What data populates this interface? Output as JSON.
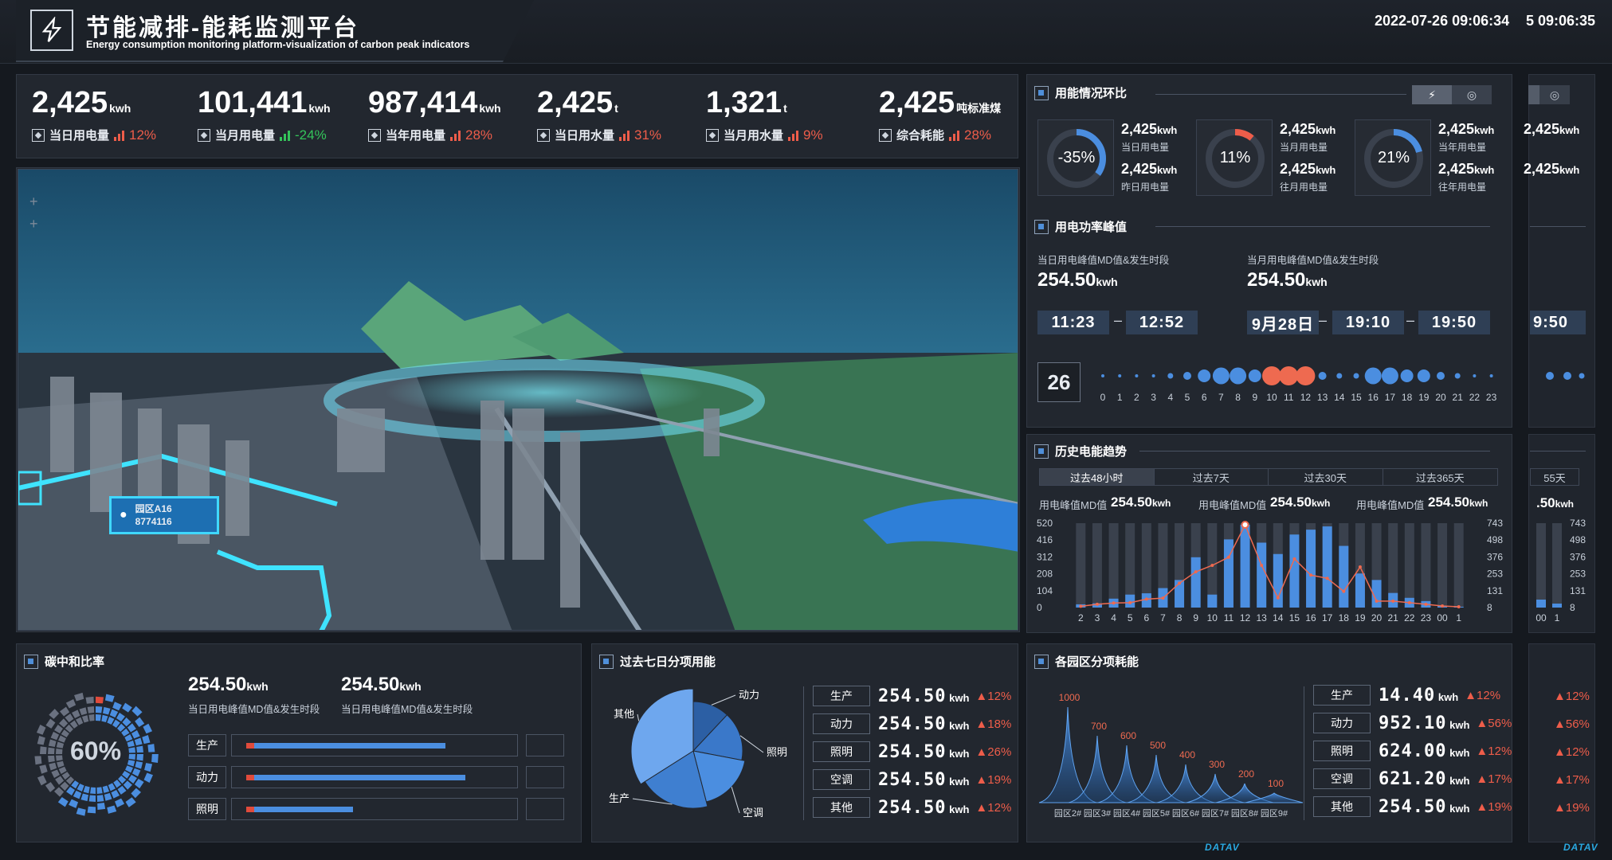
{
  "header": {
    "title": "节能减排-能耗监测平台",
    "subtitle": "Energy consumption monitoring platform-visualization of carbon peak indicators",
    "datetime": "2022-07-26 09:06:34",
    "datetime_ghost": "5 09:06:35"
  },
  "kpis": [
    {
      "value": "2,425",
      "unit": "kwh",
      "label": "当日用电量",
      "change": "12%",
      "trend": "up"
    },
    {
      "value": "101,441",
      "unit": "kwh",
      "label": "当月用电量",
      "change": "-24%",
      "trend": "down"
    },
    {
      "value": "987,414",
      "unit": "kwh",
      "label": "当年用电量",
      "change": "28%",
      "trend": "up"
    },
    {
      "value": "2,425",
      "unit": "t",
      "label": "当日用水量",
      "change": "31%",
      "trend": "up"
    },
    {
      "value": "1,321",
      "unit": "t",
      "label": "当月用水量",
      "change": "9%",
      "trend": "up"
    },
    {
      "value": "2,425",
      "unit": "吨标准煤",
      "label": "综合耗能",
      "change": "28%",
      "trend": "up"
    }
  ],
  "map": {
    "label_title": "园区A16",
    "label_value": "8774116",
    "controls": [
      "+",
      "+"
    ]
  },
  "usage_ratio": {
    "title": "用能情况环比",
    "toggles": [
      "lightning-icon",
      "drop-icon"
    ],
    "gauges": [
      {
        "pct": "-35%",
        "v1": "2,425",
        "u1": "kwh",
        "l1": "当日用电量",
        "v2": "2,425",
        "u2": "kwh",
        "l2": "昨日用电量",
        "fill": 0.35
      },
      {
        "pct": "11%",
        "v1": "2,425",
        "u1": "kwh",
        "l1": "当月用电量",
        "v2": "2,425",
        "u2": "kwh",
        "l2": "往月用电量",
        "fill": 0.11
      },
      {
        "pct": "21%",
        "v1": "2,425",
        "u1": "kwh",
        "l1": "当年用电量",
        "v2": "2,425",
        "u2": "kwh",
        "l2": "往年用电量",
        "fill": 0.21
      }
    ]
  },
  "peak": {
    "title": "用电功率峰值",
    "day_label": "当日用电峰值MD值&发生时段",
    "day_value": "254.50",
    "day_unit": "kwh",
    "day_from": "11:23",
    "day_to": "12:52",
    "month_label": "当月用电峰值MD值&发生时段",
    "month_value": "254.50",
    "month_unit": "kwh",
    "month_date": "9月28日",
    "month_from": "19:10",
    "month_to": "19:50",
    "ghost_time": "9:50",
    "day_badge": "26",
    "hours": [
      "0",
      "1",
      "2",
      "3",
      "4",
      "5",
      "6",
      "7",
      "8",
      "9",
      "10",
      "11",
      "12",
      "13",
      "14",
      "15",
      "16",
      "17",
      "18",
      "19",
      "20",
      "21",
      "22",
      "23"
    ],
    "hour_levels": [
      1,
      1,
      1,
      1,
      2,
      3,
      4,
      5,
      5,
      4,
      6,
      6,
      6,
      3,
      2,
      2,
      5,
      5,
      4,
      4,
      3,
      2,
      1,
      1
    ]
  },
  "history": {
    "title": "历史电能趋势",
    "tabs": [
      "过去48小时",
      "过去7天",
      "过去30天",
      "过去365天"
    ],
    "md": [
      {
        "label": "用电峰值MD值",
        "value": "254.50",
        "unit": "kwh"
      },
      {
        "label": "用电峰值MD值",
        "value": "254.50",
        "unit": "kwh"
      },
      {
        "label": "用电峰值MD值",
        "value": "254.50",
        "unit": "kwh"
      }
    ],
    "ghost_tab": "55天",
    "ghost_md": ".50",
    "ghost_md_unit": "kwh"
  },
  "carbon": {
    "title": "碳中和比率",
    "pct": "60%",
    "stat1_value": "254.50",
    "stat1_unit": "kwh",
    "stat1_label": "当日用电峰值MD值&发生时段",
    "stat2_value": "254.50",
    "stat2_unit": "kwh",
    "stat2_label": "当日用电峰值MD值&发生时段",
    "bars": [
      {
        "label": "生产",
        "value": 0.78
      },
      {
        "label": "动力",
        "value": 0.86
      },
      {
        "label": "照明",
        "value": 0.42
      }
    ]
  },
  "seven_day": {
    "title": "过去七日分项用能",
    "pie_labels": [
      "动力",
      "照明",
      "空调",
      "生产",
      "其他"
    ],
    "rows": [
      {
        "label": "生产",
        "value": "254.50",
        "unit": "kwh",
        "change": "12%"
      },
      {
        "label": "动力",
        "value": "254.50",
        "unit": "kwh",
        "change": "18%"
      },
      {
        "label": "照明",
        "value": "254.50",
        "unit": "kwh",
        "change": "26%"
      },
      {
        "label": "空调",
        "value": "254.50",
        "unit": "kwh",
        "change": "19%"
      },
      {
        "label": "其他",
        "value": "254.50",
        "unit": "kwh",
        "change": "12%"
      }
    ]
  },
  "zones": {
    "title": "各园区分项耗能",
    "rows": [
      {
        "label": "生产",
        "value": "14.40",
        "unit": "kwh",
        "change": "12%"
      },
      {
        "label": "动力",
        "value": "952.10",
        "unit": "kwh",
        "change": "56%"
      },
      {
        "label": "照明",
        "value": "624.00",
        "unit": "kwh",
        "change": "12%"
      },
      {
        "label": "空调",
        "value": "621.20",
        "unit": "kwh",
        "change": "17%"
      },
      {
        "label": "其他",
        "value": "254.50",
        "unit": "kwh",
        "change": "19%"
      }
    ],
    "ghost_changes": [
      "12%",
      "56%",
      "12%",
      "17%",
      "19%"
    ]
  },
  "chart_data": [
    {
      "type": "bar",
      "categories": [
        "2",
        "3",
        "4",
        "5",
        "6",
        "7",
        "8",
        "9",
        "10",
        "11",
        "12",
        "13",
        "14",
        "15",
        "16",
        "17",
        "18",
        "19",
        "20",
        "21",
        "22",
        "23",
        "00",
        "1"
      ],
      "series": [
        {
          "values": [
            20,
            26,
            55,
            80,
            88,
            120,
            170,
            310,
            80,
            420,
            510,
            400,
            330,
            450,
            480,
            500,
            380,
            210,
            170,
            90,
            60,
            40,
            10,
            5
          ]
        },
        {
          "values": [
            8,
            20,
            28,
            30,
            52,
            58,
            150,
            220,
            260,
            310,
            510,
            260,
            60,
            300,
            200,
            180,
            100,
            250,
            40,
            40,
            30,
            20,
            10,
            5
          ]
        }
      ],
      "ylim_left": [
        0,
        520
      ],
      "yticks_left": [
        "520",
        "416",
        "312",
        "208",
        "104",
        "0"
      ],
      "yticks_right": [
        "743",
        "498",
        "376",
        "253",
        "131",
        "8"
      ]
    },
    {
      "type": "area",
      "categories": [
        "园区2#",
        "园区3#",
        "园区4#",
        "园区5#",
        "园区6#",
        "园区7#",
        "园区8#",
        "园区9#"
      ],
      "values": [
        1000,
        700,
        600,
        500,
        400,
        300,
        200,
        100
      ]
    },
    {
      "type": "pie",
      "categories": [
        "动力",
        "照明",
        "空调",
        "生产",
        "其他"
      ],
      "values": [
        12,
        16,
        18,
        20,
        34
      ]
    }
  ],
  "colors": {
    "accent_blue": "#4b8ee0",
    "red": "#ee5d4a",
    "green": "#34c45a",
    "panel": "#22272f"
  },
  "watermark": "DATAV"
}
